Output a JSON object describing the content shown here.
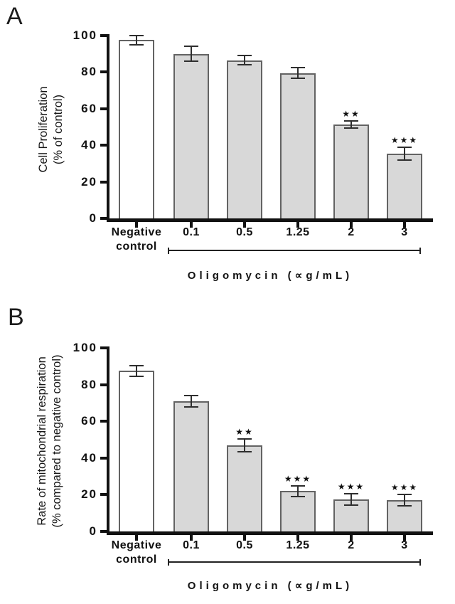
{
  "figure": {
    "background": "#ffffff",
    "panels": [
      {
        "letter": "A",
        "ylabel_lines": [
          "Cell Proliferation",
          "(% of control)"
        ]
      },
      {
        "letter": "B",
        "ylabel_lines": [
          "Rate of mitochondrial respiration",
          "(% compared to negative control)"
        ]
      }
    ]
  },
  "chart_data": [
    {
      "type": "bar",
      "panel": "A",
      "title": "",
      "categories": [
        "Negative control",
        "0.1",
        "0.5",
        "1.25",
        "2",
        "3"
      ],
      "values": [
        97.5,
        90,
        86.5,
        79.5,
        51.5,
        35.5
      ],
      "errors": [
        2.5,
        4,
        2.5,
        3,
        2,
        3.5
      ],
      "significance": [
        "",
        "",
        "",
        "",
        "**",
        "***"
      ],
      "significance_glyph": "★",
      "xlabel": "Oligomycin (∝g/mL)",
      "ylabel": "Cell Proliferation (% of control)",
      "ylim": [
        0,
        100
      ],
      "yticks": [
        0,
        20,
        40,
        60,
        80,
        100
      ],
      "grid": false,
      "legend": false,
      "bar_fill_colors": [
        "#ffffff",
        "#d8d8d8",
        "#d8d8d8",
        "#d8d8d8",
        "#d8d8d8",
        "#d8d8d8"
      ],
      "bar_border_color": "#636363",
      "error_color": "#2e2e2e",
      "dose_bracket": {
        "from_category": "0.1",
        "to_category": "3"
      }
    },
    {
      "type": "bar",
      "panel": "B",
      "title": "",
      "categories": [
        "Negative control",
        "0.1",
        "0.5",
        "1.25",
        "2",
        "3"
      ],
      "values": [
        87.5,
        71,
        47,
        22,
        17.5,
        17
      ],
      "errors": [
        3,
        3,
        3.5,
        3,
        3,
        3
      ],
      "significance": [
        "",
        "",
        "**",
        "***",
        "***",
        "***"
      ],
      "significance_glyph": "★",
      "xlabel": "Oligomycin (∝g/mL)",
      "ylabel": "Rate of mitochondrial respiration (% compared to negative control)",
      "ylim": [
        0,
        100
      ],
      "yticks": [
        0,
        20,
        40,
        60,
        80,
        100
      ],
      "grid": false,
      "legend": false,
      "bar_fill_colors": [
        "#ffffff",
        "#d8d8d8",
        "#d8d8d8",
        "#d8d8d8",
        "#d8d8d8",
        "#d8d8d8"
      ],
      "bar_border_color": "#636363",
      "error_color": "#2e2e2e",
      "dose_bracket": {
        "from_category": "0.1",
        "to_category": "3"
      }
    }
  ]
}
